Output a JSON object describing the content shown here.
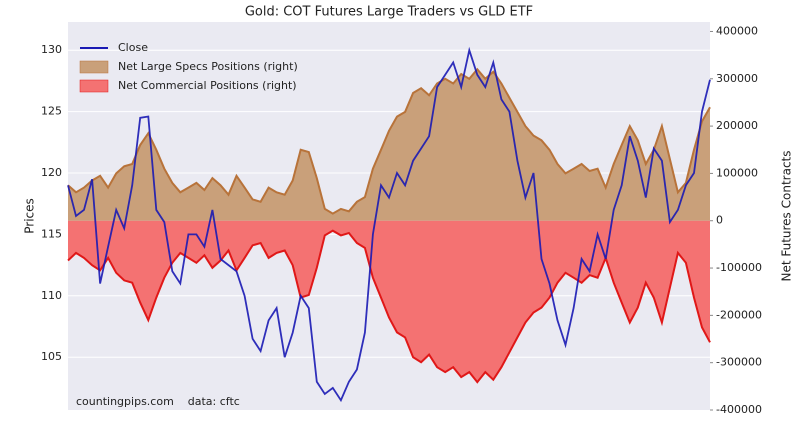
{
  "chart_data": {
    "type": "line",
    "title": "Gold: COT Futures Large Traders vs GLD ETF",
    "y_label": "Prices",
    "y2_label": "Net Futures Contracts",
    "annotation": "countingpips.com    data: cftc",
    "ylim": [
      100.7,
      132.3
    ],
    "yticks": [
      105,
      110,
      115,
      120,
      125,
      130
    ],
    "y2lim": [
      -400000,
      420000
    ],
    "y2ticks": [
      -400000,
      -300000,
      -200000,
      -100000,
      0,
      100000,
      200000,
      300000,
      400000
    ],
    "grid": true,
    "legend": "upper left",
    "series": [
      {
        "name": "Close",
        "kind": "line",
        "color": "#1a1ab4",
        "values": [
          119,
          116.5,
          117,
          119.5,
          111,
          114,
          117,
          115.5,
          119,
          124.5,
          124.6,
          117,
          116,
          112,
          111,
          115,
          115,
          114,
          117,
          113,
          112.5,
          112,
          110,
          106.5,
          105.5,
          108,
          109,
          105,
          107,
          110,
          109,
          103,
          102,
          102.5,
          101.5,
          103,
          104,
          107,
          115,
          119,
          118,
          120,
          119,
          121,
          122,
          123,
          127,
          128,
          129,
          127,
          130,
          128,
          127,
          129,
          126,
          125,
          121,
          118,
          120,
          113,
          111,
          108,
          106,
          109,
          113,
          112,
          115,
          113,
          117,
          119,
          123,
          121,
          118,
          122,
          121,
          116,
          117,
          119,
          120,
          125,
          127.6
        ]
      },
      {
        "name": "Net Large Specs Positions (right)",
        "kind": "area",
        "axis": "y2",
        "color": "#c9a07a",
        "edge": "#b8733a",
        "values": [
          75000,
          60000,
          70000,
          85000,
          95000,
          70000,
          100000,
          115000,
          120000,
          160000,
          185000,
          150000,
          110000,
          80000,
          60000,
          70000,
          80000,
          65000,
          90000,
          75000,
          55000,
          95000,
          70000,
          45000,
          40000,
          70000,
          60000,
          55000,
          85000,
          150000,
          145000,
          90000,
          25000,
          15000,
          25000,
          20000,
          40000,
          50000,
          110000,
          150000,
          190000,
          220000,
          230000,
          270000,
          280000,
          265000,
          290000,
          300000,
          290000,
          310000,
          300000,
          320000,
          300000,
          315000,
          290000,
          260000,
          230000,
          200000,
          180000,
          170000,
          150000,
          120000,
          100000,
          110000,
          120000,
          105000,
          110000,
          70000,
          120000,
          160000,
          200000,
          170000,
          120000,
          150000,
          200000,
          130000,
          60000,
          80000,
          150000,
          210000,
          240000
        ]
      },
      {
        "name": "Net Commercial Positions (right)",
        "kind": "area",
        "axis": "y2",
        "color": "#f47272",
        "edge": "#e01818",
        "values": [
          -84000,
          -68000,
          -78500,
          -94000,
          -105000,
          -78500,
          -110000,
          -126000,
          -131000,
          -173000,
          -210000,
          -162500,
          -120500,
          -89000,
          -68000,
          -78500,
          -89000,
          -73000,
          -99500,
          -84000,
          -63000,
          -105000,
          -78500,
          -52000,
          -47000,
          -78500,
          -68000,
          -63000,
          -94000,
          -162500,
          -157000,
          -99500,
          -31000,
          -21000,
          -31000,
          -26000,
          -47000,
          -57500,
          -120500,
          -162500,
          -204500,
          -236000,
          -246500,
          -288500,
          -299000,
          -283000,
          -309500,
          -320000,
          -309500,
          -330500,
          -320000,
          -341000,
          -320000,
          -336000,
          -309500,
          -278000,
          -246500,
          -215000,
          -194000,
          -183500,
          -162500,
          -131000,
          -110000,
          -120500,
          -131000,
          -115000,
          -120500,
          -78500,
          -131000,
          -173000,
          -215000,
          -183500,
          -131000,
          -162500,
          -215000,
          -141500,
          -68000,
          -89000,
          -162500,
          -225500,
          -257000
        ]
      }
    ]
  }
}
